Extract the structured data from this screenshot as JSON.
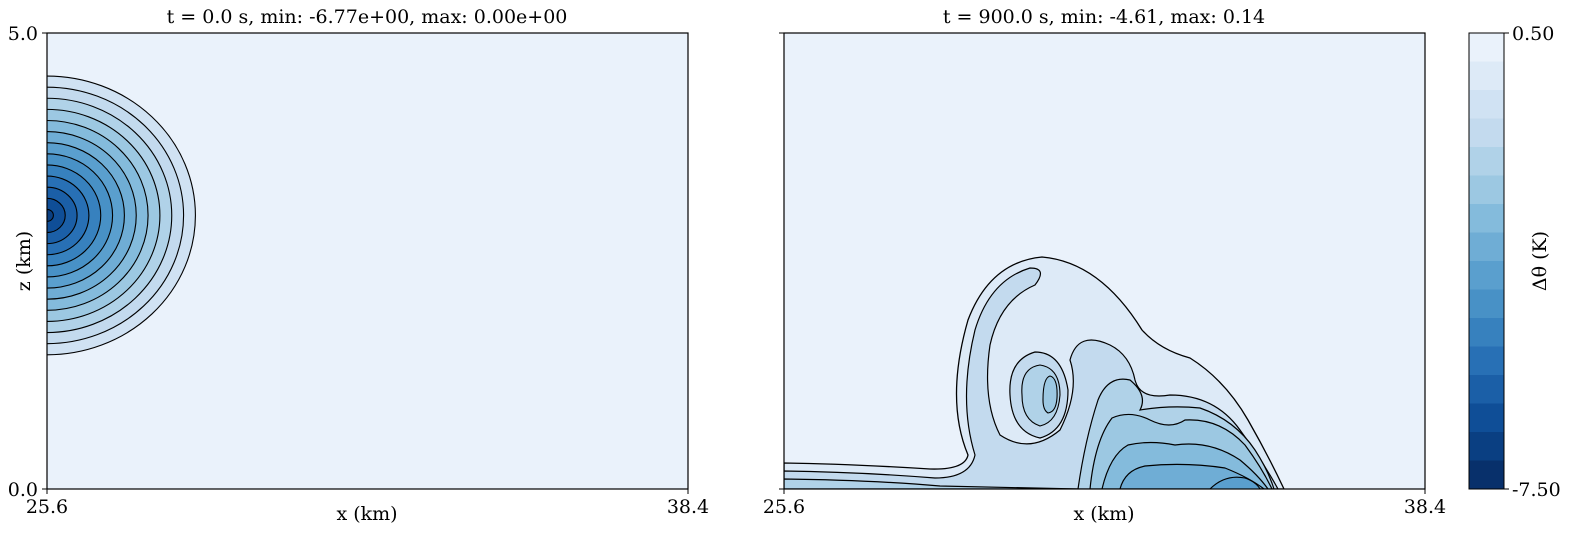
{
  "chart_data": [
    {
      "type": "heatmap",
      "title": "t = 0.0 s, min: -6.77e+00, max: 0.00e+00",
      "xlabel": "x (km)",
      "ylabel": "z (km)",
      "xlim": [
        25.6,
        38.4
      ],
      "ylim": [
        0.0,
        5.0
      ],
      "xticks": [
        "25.6",
        "38.4"
      ],
      "yticks": [
        "0.0",
        "5.0"
      ],
      "field": "delta_theta",
      "min": -6.77,
      "max": 0.0,
      "bubble": {
        "center_x_km": 25.6,
        "center_z_km": 3.0,
        "radius_x_km": 3.2,
        "radius_z_km": 1.65,
        "min_value": -6.77
      }
    },
    {
      "type": "heatmap",
      "title": "t = 900.0 s, min: -4.61, max: 0.14",
      "xlabel": "x (km)",
      "xlim": [
        25.6,
        38.4
      ],
      "ylim": [
        0.0,
        5.0
      ],
      "xticks": [
        "25.6",
        "38.4"
      ],
      "field": "delta_theta",
      "min": -4.61,
      "max": 0.14
    }
  ],
  "colorbar": {
    "label": "Δθ (K)",
    "tick_top": "0.50",
    "tick_bottom": "-7.50",
    "levels": [
      0.5,
      0.0,
      -0.5,
      -1.0,
      -1.5,
      -2.0,
      -2.5,
      -3.0,
      -3.5,
      -4.0,
      -4.5,
      -5.0,
      -5.5,
      -6.0,
      -6.5,
      -7.0,
      -7.5
    ],
    "colors": [
      "#eaf2fb",
      "#ddeaf7",
      "#d0e2f3",
      "#c3daee",
      "#b0d2e8",
      "#9cc8e2",
      "#84bbdc",
      "#6fadd5",
      "#5a9fce",
      "#4891c6",
      "#3781be",
      "#2870b5",
      "#1b5fa7",
      "#0f4e97",
      "#0a3f82",
      "#08306b"
    ]
  }
}
